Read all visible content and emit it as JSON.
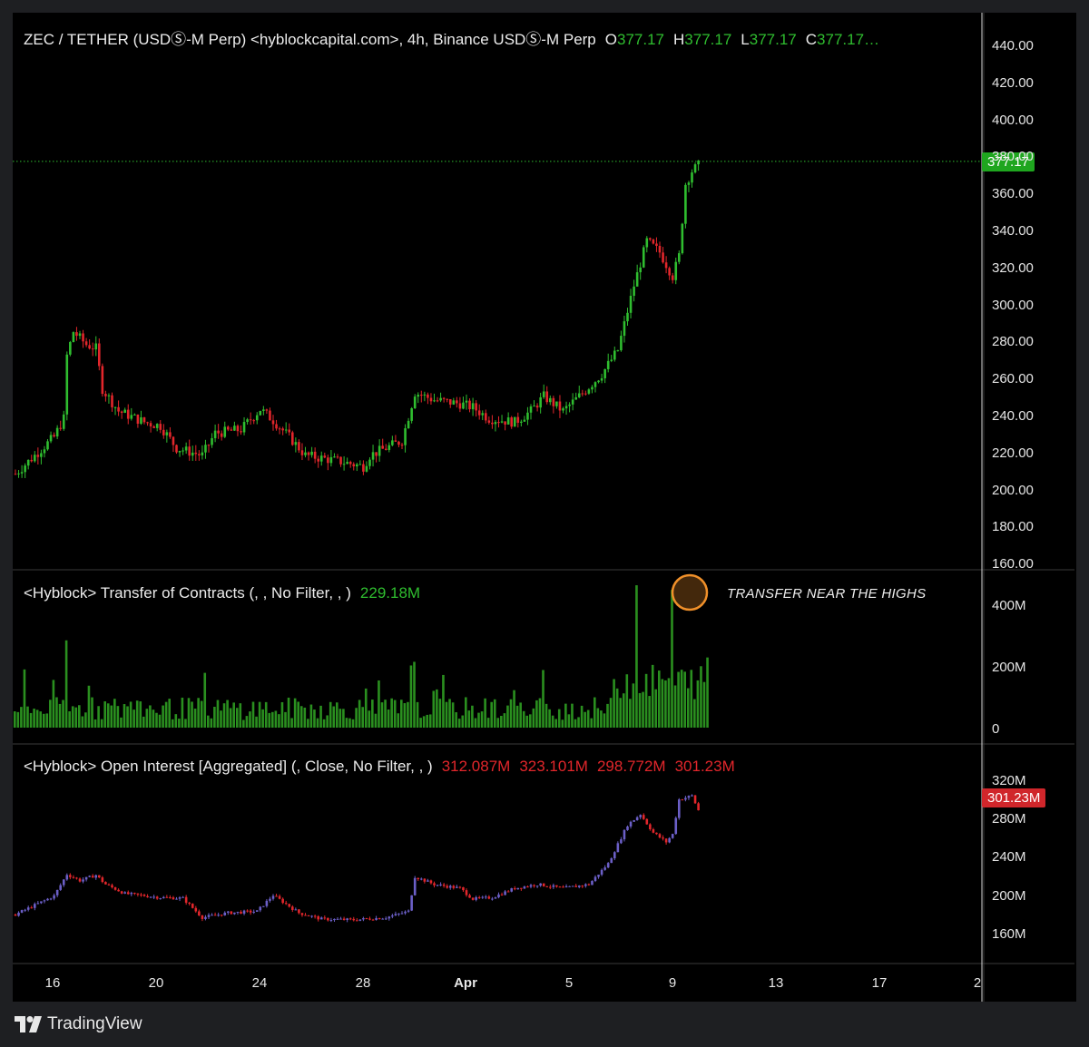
{
  "header": {
    "symbol": "ZEC / TETHER (USDⓈ-M Perp) <hyblockcapital.com>, 4h, Binance USDⓈ-M Perp",
    "o_label": "O",
    "o_value": "377.17",
    "h_label": "H",
    "h_value": "377.17",
    "l_label": "L",
    "l_value": "377.17",
    "c_label": "C",
    "c_value": "377.17…"
  },
  "pane2": {
    "title": "<Hyblock> Transfer of Contracts (, , No Filter, , )",
    "value": "229.18M",
    "annotation": "TRANSFER NEAR THE HIGHS"
  },
  "pane3": {
    "title": "<Hyblock> Open Interest [Aggregated] (, Close, No Filter, , )",
    "o": "312.087M",
    "h": "323.101M",
    "l": "298.772M",
    "c": "301.23M"
  },
  "price_tag": "377.17",
  "oi_tag": "301.23M",
  "brand": {
    "name": "TradingView",
    "icon": "tradingview-logo-icon"
  },
  "colors": {
    "up": "#2fbd2f",
    "down": "#e2262b",
    "oi": "#6b5fc7",
    "highlight": "#f0902a",
    "background": "#000000"
  },
  "chart_data": [
    {
      "type": "candlestick",
      "title": "ZEC / TETHER (USDⓈ-M Perp) <hyblockcapital.com>, 4h, Binance USDⓈ-M Perp",
      "ylim": [
        160,
        440
      ],
      "y_ticks": [
        "440.00",
        "420.00",
        "400.00",
        "380.00",
        "360.00",
        "340.00",
        "320.00",
        "300.00",
        "280.00",
        "260.00",
        "240.00",
        "220.00",
        "200.00",
        "180.00",
        "160.00"
      ],
      "x_ticks": [
        "16",
        "20",
        "24",
        "28",
        "Apr",
        "5",
        "9",
        "13",
        "17",
        "2"
      ],
      "last_price": 377.17,
      "approx_path": [
        [
          0,
          208
        ],
        [
          12,
          228
        ],
        [
          15,
          238
        ],
        [
          16,
          272
        ],
        [
          18,
          285
        ],
        [
          22,
          278
        ],
        [
          25,
          276
        ],
        [
          27,
          254
        ],
        [
          32,
          242
        ],
        [
          40,
          236
        ],
        [
          45,
          234
        ],
        [
          50,
          222
        ],
        [
          58,
          218
        ],
        [
          62,
          230
        ],
        [
          70,
          232
        ],
        [
          76,
          243
        ],
        [
          80,
          237
        ],
        [
          85,
          228
        ],
        [
          90,
          218
        ],
        [
          100,
          215
        ],
        [
          108,
          212
        ],
        [
          110,
          218
        ],
        [
          115,
          222
        ],
        [
          120,
          226
        ],
        [
          124,
          252
        ],
        [
          130,
          248
        ],
        [
          138,
          246
        ],
        [
          142,
          244
        ],
        [
          147,
          238
        ],
        [
          155,
          236
        ],
        [
          160,
          242
        ],
        [
          164,
          250
        ],
        [
          170,
          242
        ],
        [
          175,
          250
        ],
        [
          182,
          262
        ],
        [
          187,
          275
        ],
        [
          192,
          310
        ],
        [
          196,
          334
        ],
        [
          200,
          328
        ],
        [
          204,
          315
        ],
        [
          206,
          326
        ],
        [
          208,
          365
        ],
        [
          210,
          372
        ],
        [
          212,
          375
        ]
      ]
    },
    {
      "type": "bar",
      "title": "<Hyblock> Transfer of Contracts (, , No Filter, , )",
      "ylim": [
        0,
        500
      ],
      "y_ticks": [
        "400M",
        "200M",
        "0"
      ],
      "unit": "M",
      "last_value": 229.18,
      "annotation": "TRANSFER NEAR THE HIGHS",
      "peaks": [
        {
          "bar_index": 16,
          "value": 285
        },
        {
          "bar_index": 124,
          "value": 215
        },
        {
          "bar_index": 193,
          "value": 465
        },
        {
          "bar_index": 204,
          "value": 450
        }
      ]
    },
    {
      "type": "candlestick",
      "title": "<Hyblock> Open Interest [Aggregated] (, Close, No Filter, , )",
      "ylim": [
        140,
        340
      ],
      "y_ticks": [
        "320M",
        "280M",
        "240M",
        "200M",
        "160M"
      ],
      "unit": "M",
      "ohlc_last": {
        "o": 312.087,
        "h": 323.101,
        "l": 298.772,
        "c": 301.23
      },
      "approx_path": [
        [
          0,
          166
        ],
        [
          12,
          190
        ],
        [
          16,
          218
        ],
        [
          20,
          210
        ],
        [
          25,
          217
        ],
        [
          28,
          205
        ],
        [
          34,
          193
        ],
        [
          45,
          188
        ],
        [
          52,
          187
        ],
        [
          58,
          162
        ],
        [
          66,
          168
        ],
        [
          75,
          170
        ],
        [
          80,
          191
        ],
        [
          88,
          168
        ],
        [
          95,
          160
        ],
        [
          105,
          159
        ],
        [
          115,
          162
        ],
        [
          122,
          170
        ],
        [
          124,
          215
        ],
        [
          130,
          205
        ],
        [
          138,
          200
        ],
        [
          142,
          186
        ],
        [
          148,
          188
        ],
        [
          155,
          200
        ],
        [
          162,
          205
        ],
        [
          170,
          200
        ],
        [
          178,
          205
        ],
        [
          184,
          232
        ],
        [
          190,
          282
        ],
        [
          194,
          296
        ],
        [
          198,
          272
        ],
        [
          202,
          260
        ],
        [
          204,
          270
        ],
        [
          206,
          315
        ],
        [
          210,
          320
        ],
        [
          212,
          301
        ]
      ]
    }
  ]
}
